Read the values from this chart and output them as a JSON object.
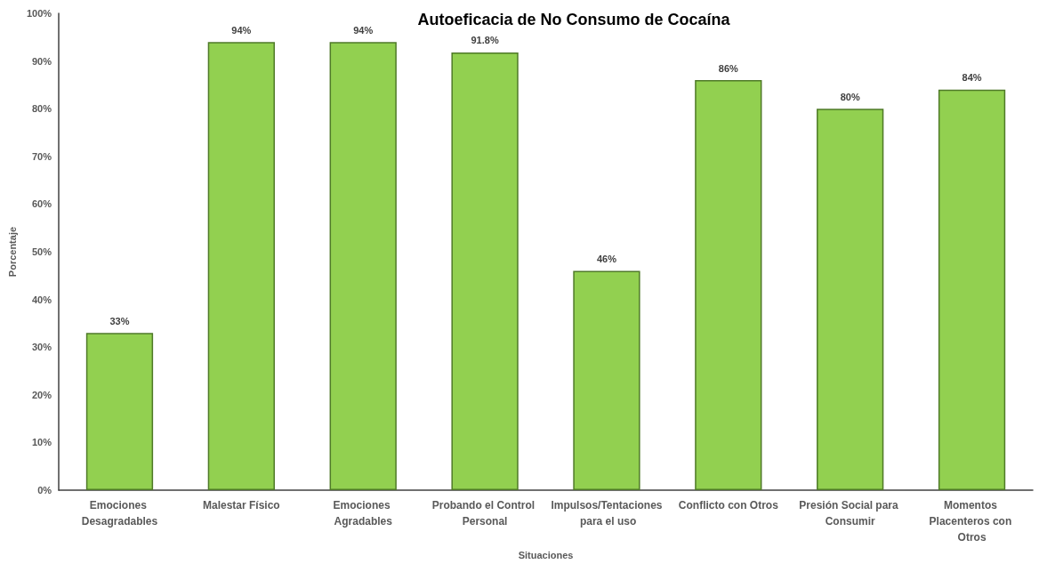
{
  "chart_data": {
    "type": "bar",
    "title": "Autoeficacia de No Consumo de Cocaína",
    "xlabel": "Situaciones",
    "ylabel": "Porcentaje",
    "categories": [
      "Emociones Desagradables",
      "Malestar Físico",
      "Emociones Agradables",
      "Probando el Control Personal",
      "Impulsos/Tentaciones para el uso",
      "Conflicto con Otros",
      "Presión Social para Consumir",
      "Momentos Placenteros con Otros"
    ],
    "values": [
      33,
      94,
      94,
      91.8,
      46,
      86,
      80,
      84
    ],
    "value_labels": [
      "33%",
      "94%",
      "94%",
      "91.8%",
      "46%",
      "86%",
      "80%",
      "84%"
    ],
    "color": "#92d050",
    "ylim": [
      0,
      100
    ],
    "yticks": [
      {
        "value": 0,
        "label": "0%"
      },
      {
        "value": 10,
        "label": "10%"
      },
      {
        "value": 20,
        "label": "20%"
      },
      {
        "value": 30,
        "label": "30%"
      },
      {
        "value": 40,
        "label": "40%"
      },
      {
        "value": 50,
        "label": "50%"
      },
      {
        "value": 60,
        "label": "60%"
      },
      {
        "value": 70,
        "label": "70%"
      },
      {
        "value": 80,
        "label": "80%"
      },
      {
        "value": 90,
        "label": "90%"
      },
      {
        "value": 100,
        "label": "100%"
      }
    ],
    "grid": false
  }
}
